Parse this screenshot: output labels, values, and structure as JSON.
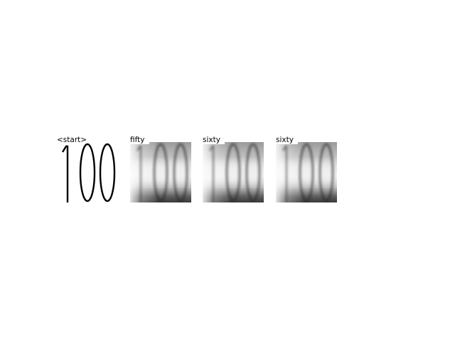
{
  "panels": [
    {
      "label": "<start>",
      "style": "clean"
    },
    {
      "label": "fifty",
      "style": "blurred"
    },
    {
      "label": "sixty",
      "style": "blurred"
    },
    {
      "label": "sixty",
      "style": "blurred"
    }
  ],
  "depicted_text": "100",
  "colors": {
    "background": "#ffffff",
    "ink": "#000000"
  }
}
